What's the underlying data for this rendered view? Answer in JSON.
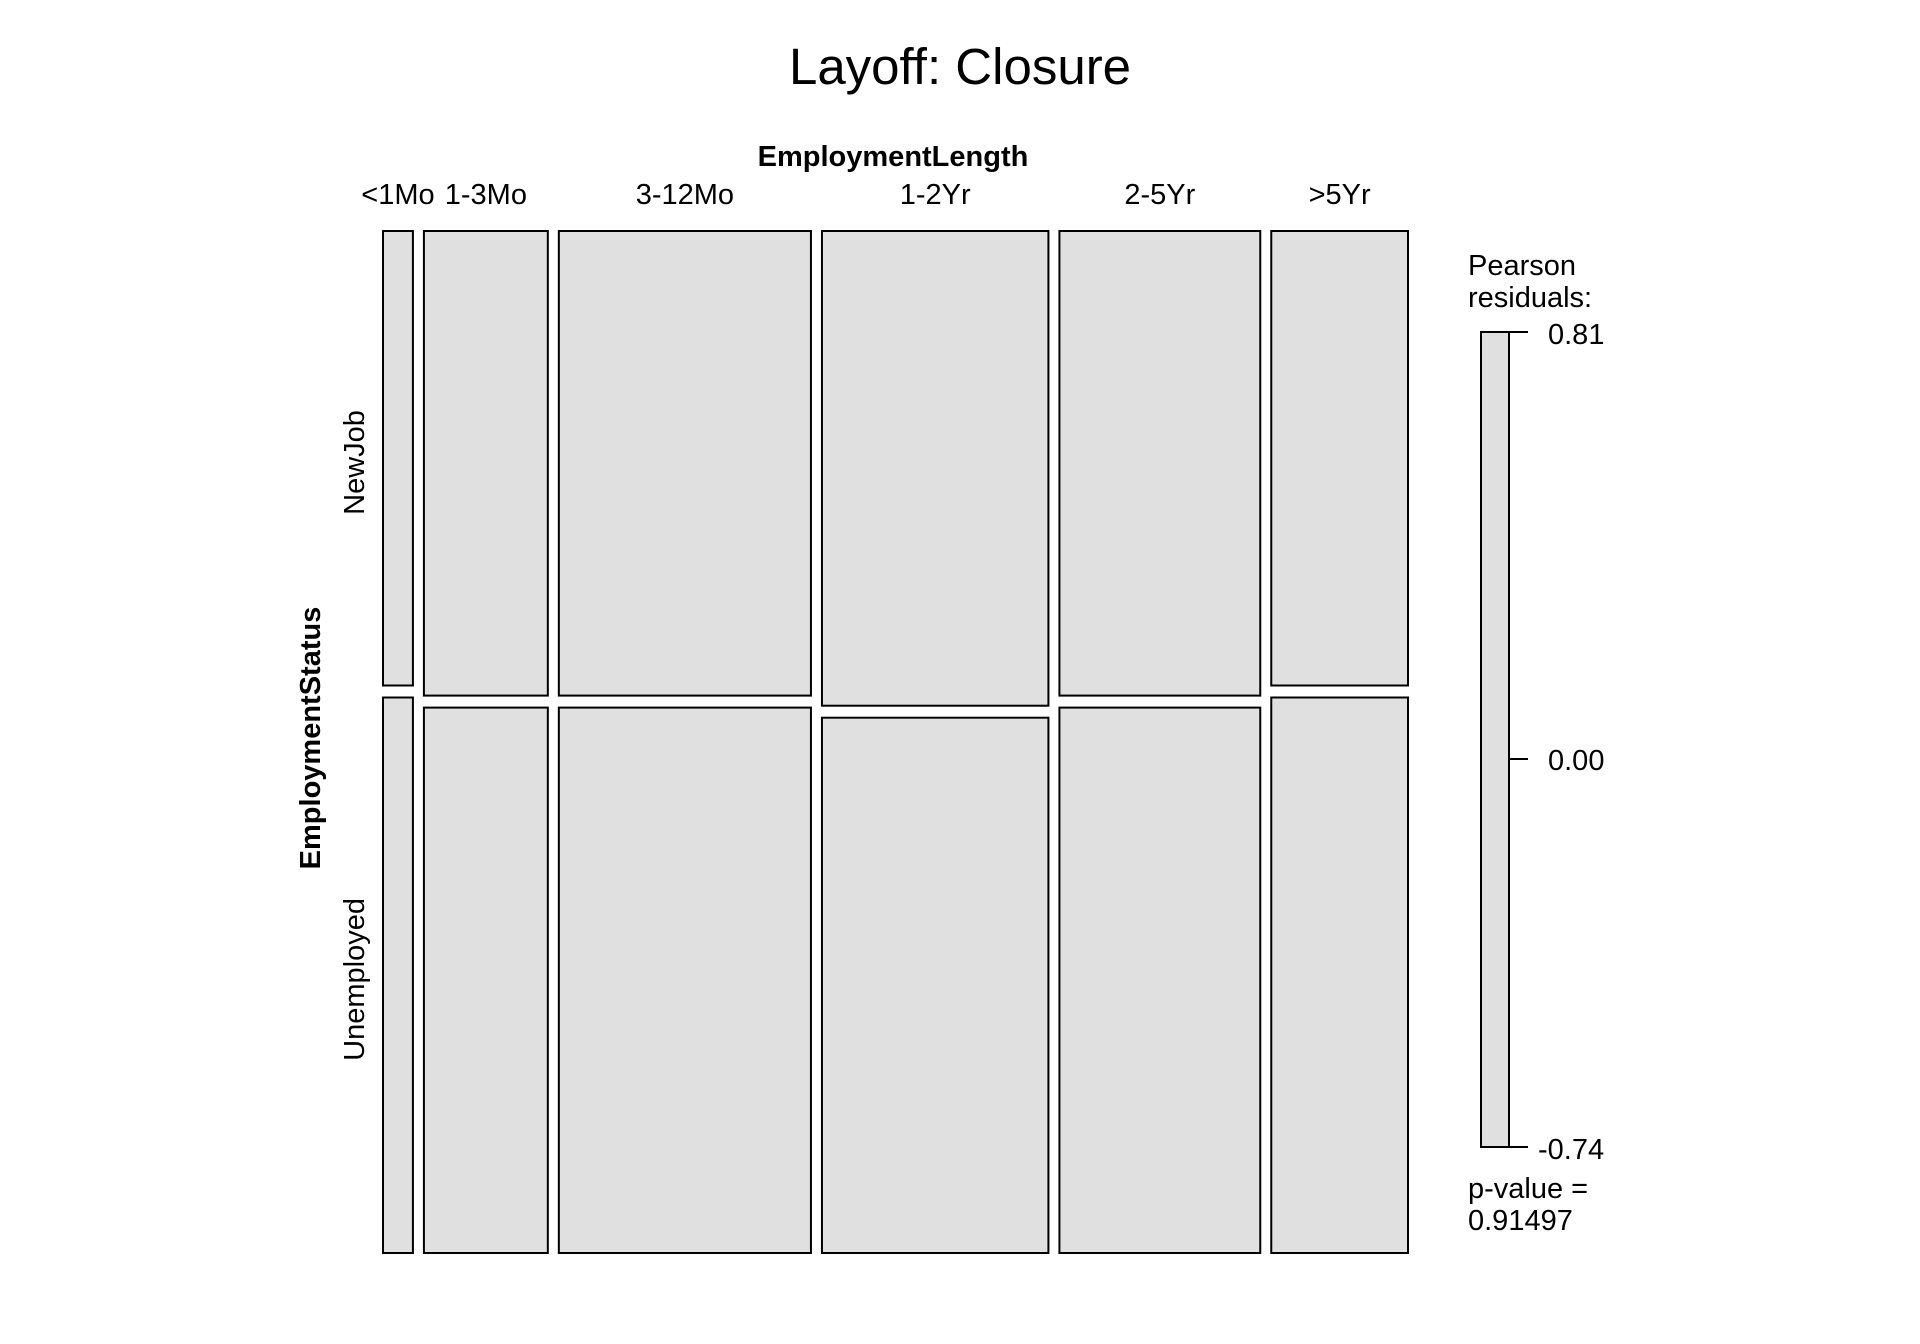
{
  "chart_data": {
    "type": "mosaic",
    "title": "Layoff: Closure",
    "column_variable": "EmploymentLength",
    "row_variable": "EmploymentStatus",
    "categories": [
      "<1Mo",
      "1-3Mo",
      "3-12Mo",
      "1-2Yr",
      "2-5Yr",
      ">5Yr"
    ],
    "rows": [
      "NewJob",
      "Unemployed"
    ],
    "column_totals": [
      7,
      29,
      59,
      53,
      47,
      32
    ],
    "row_proportions": {
      "NewJob": [
        0.45,
        0.46,
        0.46,
        0.47,
        0.46,
        0.45
      ],
      "Unemployed": [
        0.55,
        0.54,
        0.54,
        0.53,
        0.54,
        0.55
      ]
    },
    "shading": {
      "legend_title_line1": "Pearson",
      "legend_title_line2": "residuals:",
      "max_label": "0.81",
      "mid_label": "0.00",
      "min_label": "-0.74",
      "p_value_label": "p-value =",
      "p_value": "0.91497",
      "fill_color": "#e0e0e0"
    }
  }
}
